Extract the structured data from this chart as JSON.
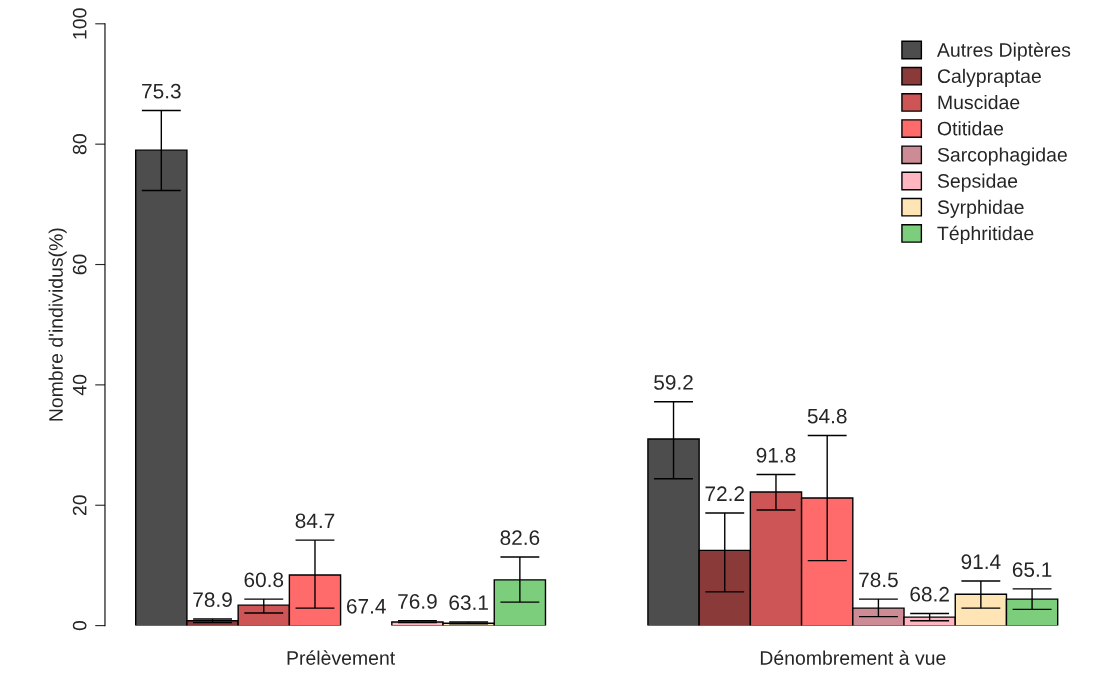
{
  "chart_data": {
    "type": "bar",
    "ylabel": "Nombre d'individus(%)",
    "categories": [
      "Prélèvement",
      "Dénombrement à vue"
    ],
    "series": [
      {
        "name": "Autres Diptères",
        "color": "#4d4d4d",
        "values": [
          79.0,
          31.0
        ],
        "errors": [
          [
            72.3,
            85.6
          ],
          [
            24.4,
            37.2
          ]
        ]
      },
      {
        "name": "Calypraptae",
        "color": "#8b3a3a",
        "values": [
          0.8,
          12.5
        ],
        "errors": [
          [
            0.5,
            1.1
          ],
          [
            5.6,
            18.7
          ]
        ]
      },
      {
        "name": "Muscidae",
        "color": "#cd5555",
        "values": [
          3.4,
          22.2
        ],
        "errors": [
          [
            2.1,
            4.4
          ],
          [
            19.2,
            25.1
          ]
        ]
      },
      {
        "name": "Otitidae",
        "color": "#ff6a6a",
        "values": [
          8.4,
          21.2
        ],
        "errors": [
          [
            2.9,
            14.2
          ],
          [
            10.8,
            31.6
          ]
        ]
      },
      {
        "name": "Sarcophagidae",
        "color": "#cd8c95",
        "values": [
          0,
          2.9
        ],
        "errors": [
          null,
          [
            1.5,
            4.4
          ]
        ]
      },
      {
        "name": "Sepsidae",
        "color": "#ffb6c1",
        "values": [
          0.6,
          1.4
        ],
        "errors": [
          [
            0.5,
            0.8
          ],
          [
            0.8,
            2.0
          ]
        ]
      },
      {
        "name": "Syrphidae",
        "color": "#ffe4b5",
        "values": [
          0.4,
          5.2
        ],
        "errors": [
          [
            0.3,
            0.6
          ],
          [
            2.9,
            7.4
          ]
        ]
      },
      {
        "name": "Téphritidae",
        "color": "#7ccd7c",
        "values": [
          7.6,
          4.4
        ],
        "errors": [
          [
            3.9,
            11.4
          ],
          [
            2.7,
            6.1
          ]
        ]
      }
    ],
    "annotations": [
      "75.3",
      "78.9",
      "60.8",
      "84.7",
      "67.4",
      "76.9",
      "63.1",
      "82.6",
      "59.2",
      "72.2",
      "91.8",
      "54.8",
      "78.5",
      "68.2",
      "91.4",
      "65.1"
    ],
    "ylim": [
      0,
      100
    ],
    "yticks": [
      0,
      20,
      40,
      60,
      80,
      100
    ],
    "grid": false,
    "legend": "top right"
  }
}
